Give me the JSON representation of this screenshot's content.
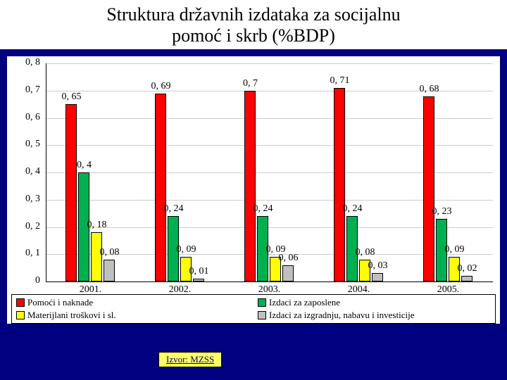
{
  "title_line1": "Struktura državnih izdataka za socijalnu",
  "title_line2": "pomoć i skrb (%BDP)",
  "source_label": "Izvor: MZSS",
  "chart": {
    "type": "bar",
    "categories": [
      "2001.",
      "2002.",
      "2003.",
      "2004.",
      "2005."
    ],
    "series": [
      {
        "name": "Pomoći i naknade",
        "color": "#ff0000",
        "values": [
          0.65,
          0.69,
          0.7,
          0.71,
          0.68
        ]
      },
      {
        "name": "Izdaci za zaposlene",
        "color": "#00b050",
        "values": [
          0.4,
          0.24,
          0.24,
          0.24,
          0.23
        ]
      },
      {
        "name": "Materijlani troškovi i sl.",
        "color": "#ffff00",
        "values": [
          0.18,
          0.09,
          0.09,
          0.08,
          0.09
        ]
      },
      {
        "name": "Izdaci za izgradnju, nabavu i investicije",
        "color": "#bfbfbf",
        "values": [
          0.08,
          0.01,
          0.06,
          0.03,
          0.02
        ]
      }
    ],
    "value_labels": [
      [
        "0, 65",
        "0, 69",
        "0, 7",
        "0, 71",
        "0, 68"
      ],
      [
        "0, 4",
        "0, 24",
        "0, 24",
        "0, 24",
        "0, 23"
      ],
      [
        "0, 18",
        "0, 09",
        "0, 09",
        "0, 08",
        "0, 09"
      ],
      [
        "0, 08",
        "0, 01",
        "0, 06",
        "0, 03",
        "0, 02"
      ]
    ],
    "ytick_labels": [
      "0",
      "0, 1",
      "0, 2",
      "0, 3",
      "0, 4",
      "0, 5",
      "0, 6",
      "0, 7",
      "0, 8"
    ],
    "ylim": [
      0,
      0.8
    ],
    "ytick_step": 0.1,
    "grid_color": "#cccccc",
    "background_color": "#ffffff"
  },
  "colors": {
    "slide_bg": "#000080",
    "source_bg": "#ffff66",
    "source_text": "#000066"
  }
}
